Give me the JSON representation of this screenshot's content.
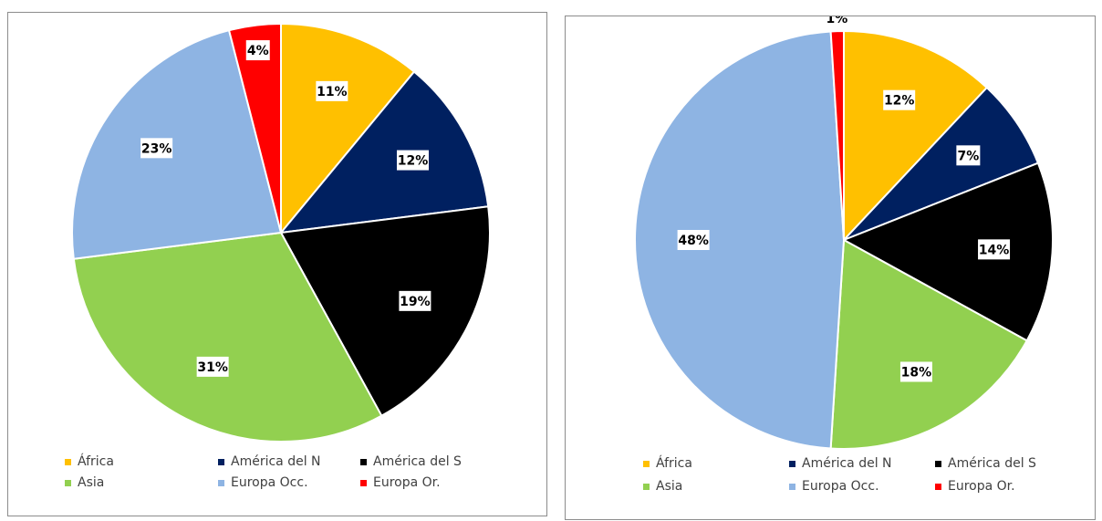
{
  "chart_data": [
    {
      "type": "pie",
      "categories": [
        "África",
        "América del N",
        "América del S",
        "Asia",
        "Europa Occ.",
        "Europa Or."
      ],
      "values": [
        11,
        12,
        19,
        31,
        23,
        4
      ],
      "value_labels": [
        "11%",
        "12%",
        "19%",
        "31%",
        "23%",
        "4%"
      ],
      "colors": [
        "#FFC000",
        "#002060",
        "#000000",
        "#92D050",
        "#8EB4E3",
        "#FF0000"
      ],
      "legend_position": "bottom",
      "title": ""
    },
    {
      "type": "pie",
      "categories": [
        "África",
        "América del N",
        "América del S",
        "Asia",
        "Europa Occ.",
        "Europa Or."
      ],
      "values": [
        12,
        7,
        14,
        18,
        48,
        1
      ],
      "value_labels": [
        "12%",
        "7%",
        "14%",
        "18%",
        "48%",
        "1%"
      ],
      "colors": [
        "#FFC000",
        "#002060",
        "#000000",
        "#92D050",
        "#8EB4E3",
        "#FF0000"
      ],
      "legend_position": "bottom",
      "title": ""
    }
  ],
  "legend": [
    {
      "label": "África",
      "color": "#FFC000"
    },
    {
      "label": "América del N",
      "color": "#002060"
    },
    {
      "label": "América del S",
      "color": "#000000"
    },
    {
      "label": "Asia",
      "color": "#92D050"
    },
    {
      "label": "Europa Occ.",
      "color": "#8EB4E3"
    },
    {
      "label": "Europa Or.",
      "color": "#FF0000"
    }
  ]
}
